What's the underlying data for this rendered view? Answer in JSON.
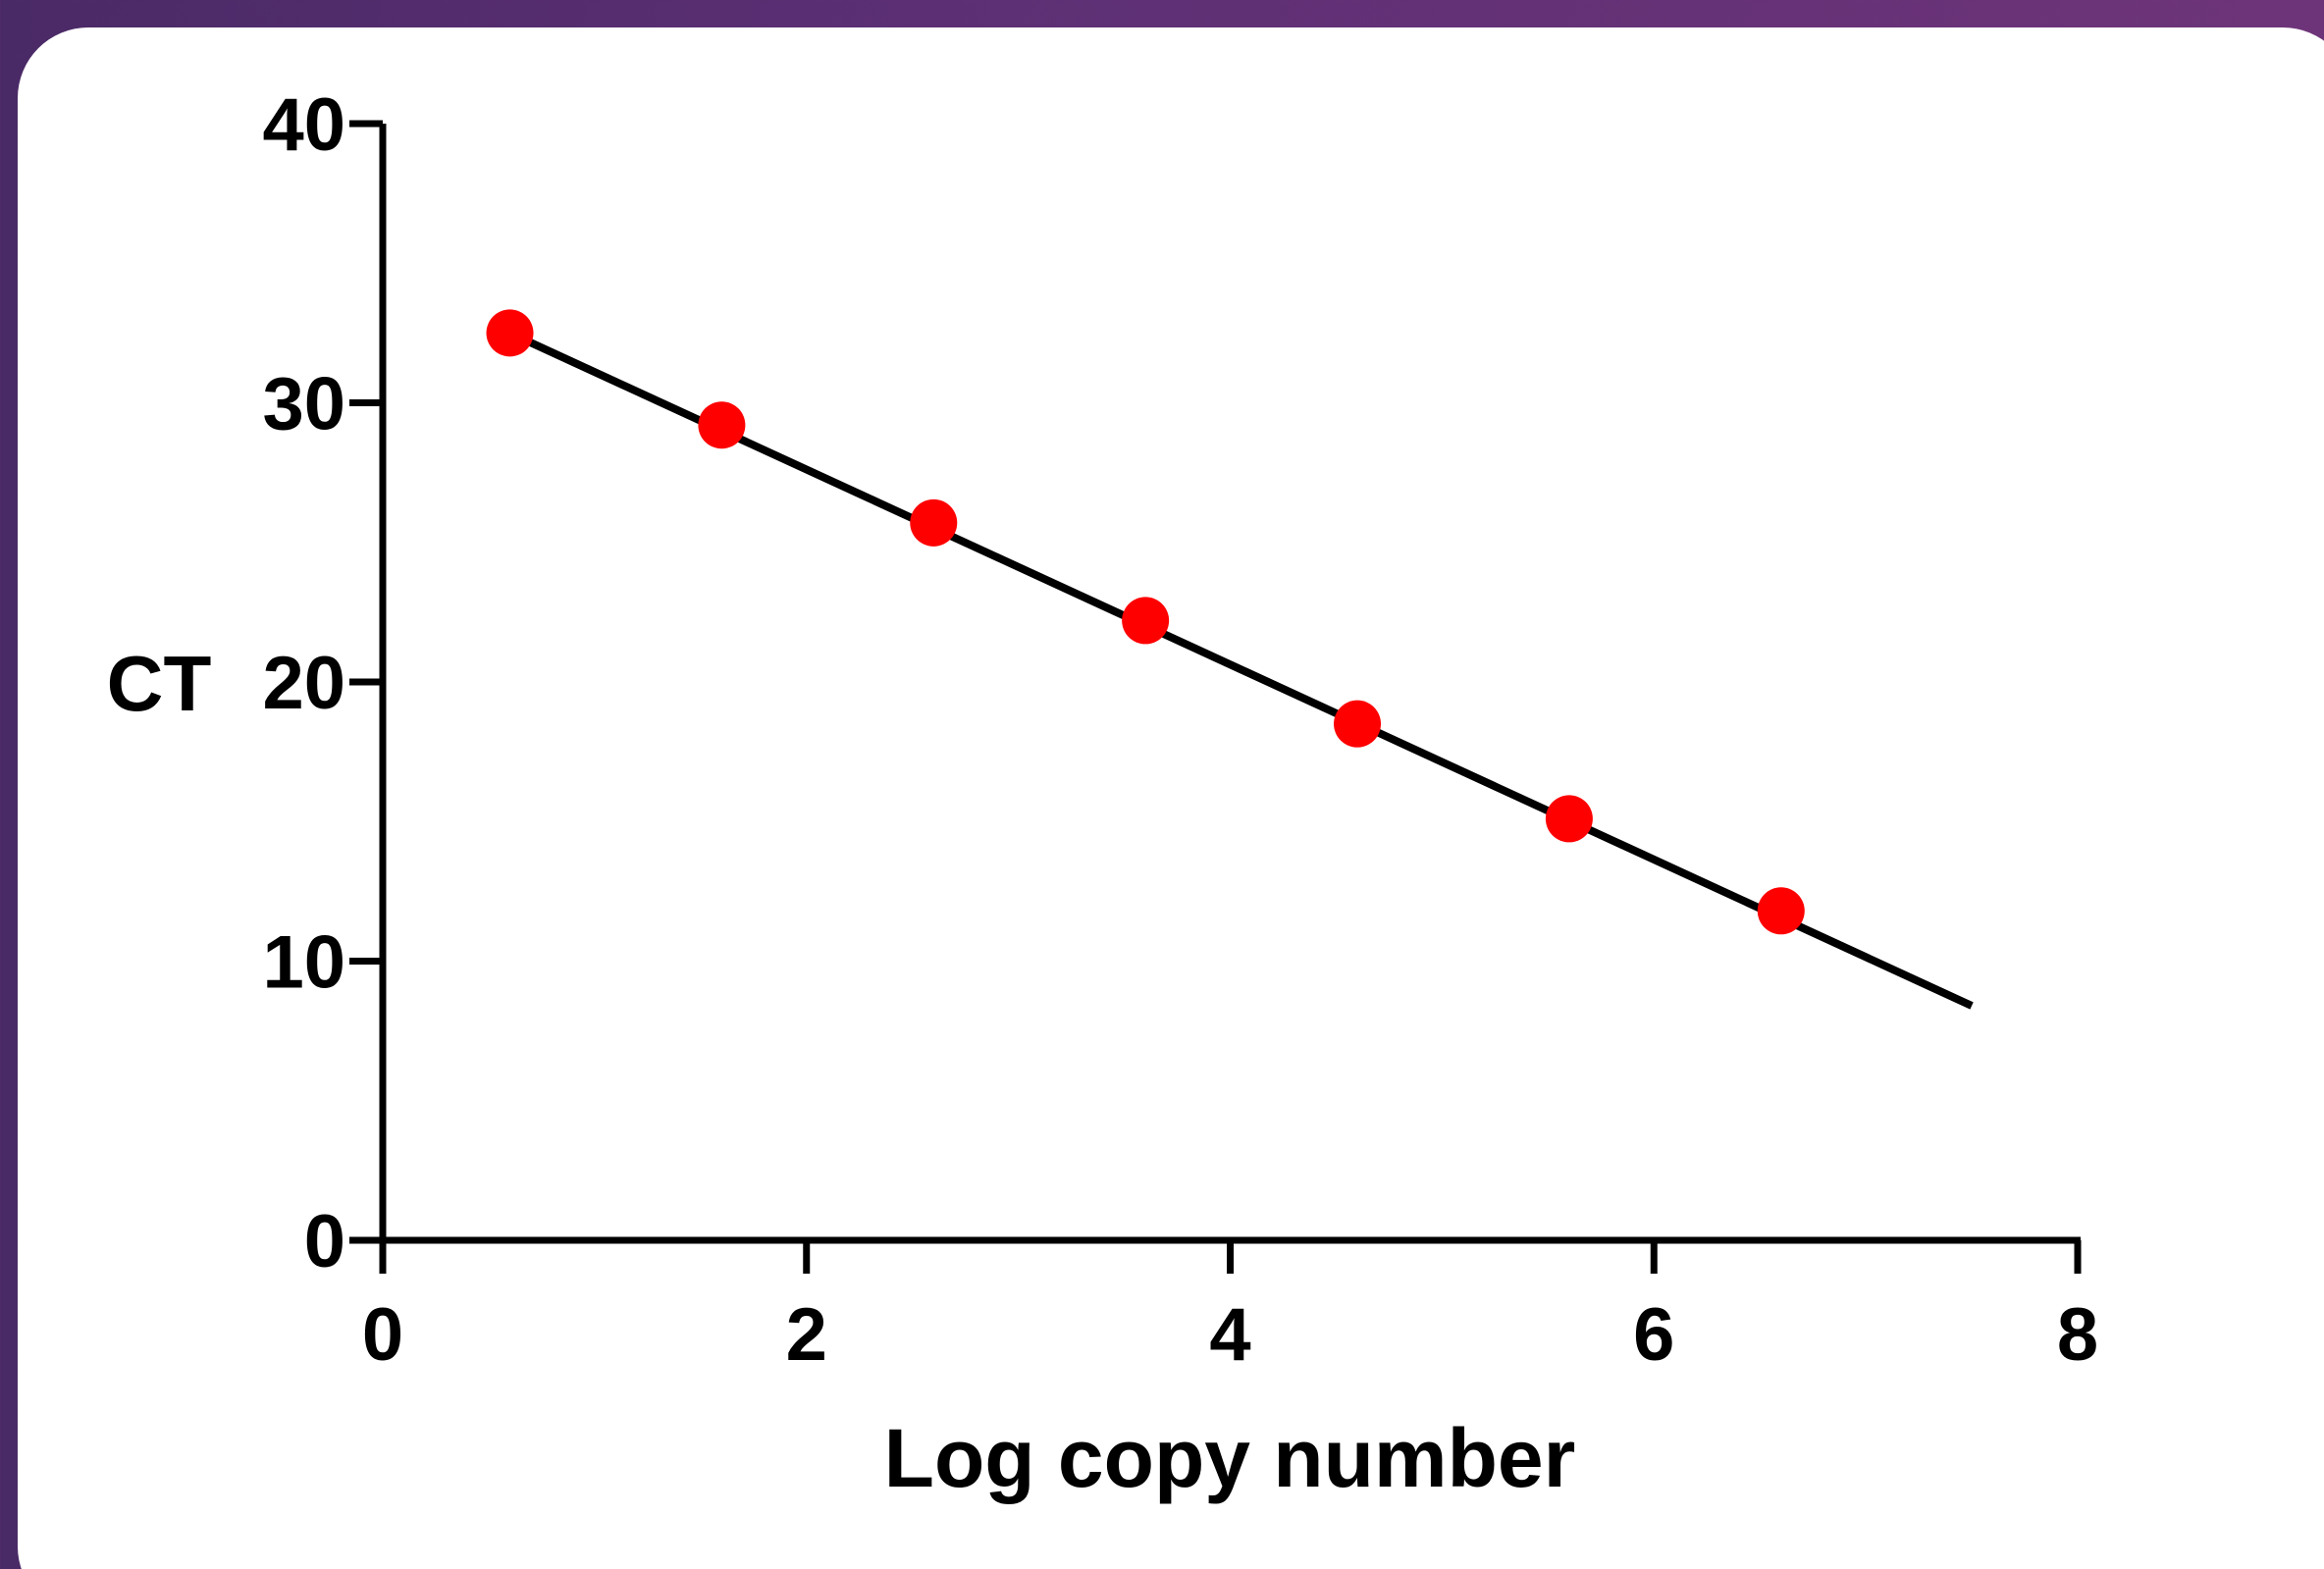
{
  "chart_data": {
    "type": "scatter",
    "title": "",
    "xlabel": "Log copy number",
    "ylabel": "CT",
    "xlim": [
      0,
      8
    ],
    "ylim": [
      0,
      40
    ],
    "xticks": [
      "0",
      "2",
      "4",
      "6",
      "8"
    ],
    "yticks": [
      "0",
      "10",
      "20",
      "30",
      "40"
    ],
    "grid": false,
    "legend": "none",
    "series": [
      {
        "points": [
          {
            "x": 0.6,
            "y": 32.5
          },
          {
            "x": 1.6,
            "y": 29.2
          },
          {
            "x": 2.6,
            "y": 25.7
          },
          {
            "x": 3.6,
            "y": 22.2
          },
          {
            "x": 4.6,
            "y": 18.5
          },
          {
            "x": 5.6,
            "y": 15.1
          },
          {
            "x": 6.6,
            "y": 11.8
          }
        ],
        "color": "#ff0000"
      }
    ],
    "fit_line": {
      "x": [
        0.6,
        7.5
      ],
      "y": [
        32.5,
        8.4
      ],
      "color": "#000000"
    }
  },
  "colors": {
    "background_start": "#4a2a66",
    "background_end": "#6e3479",
    "card": "#ffffff",
    "axis": "#000000",
    "points": "#ff0000"
  }
}
